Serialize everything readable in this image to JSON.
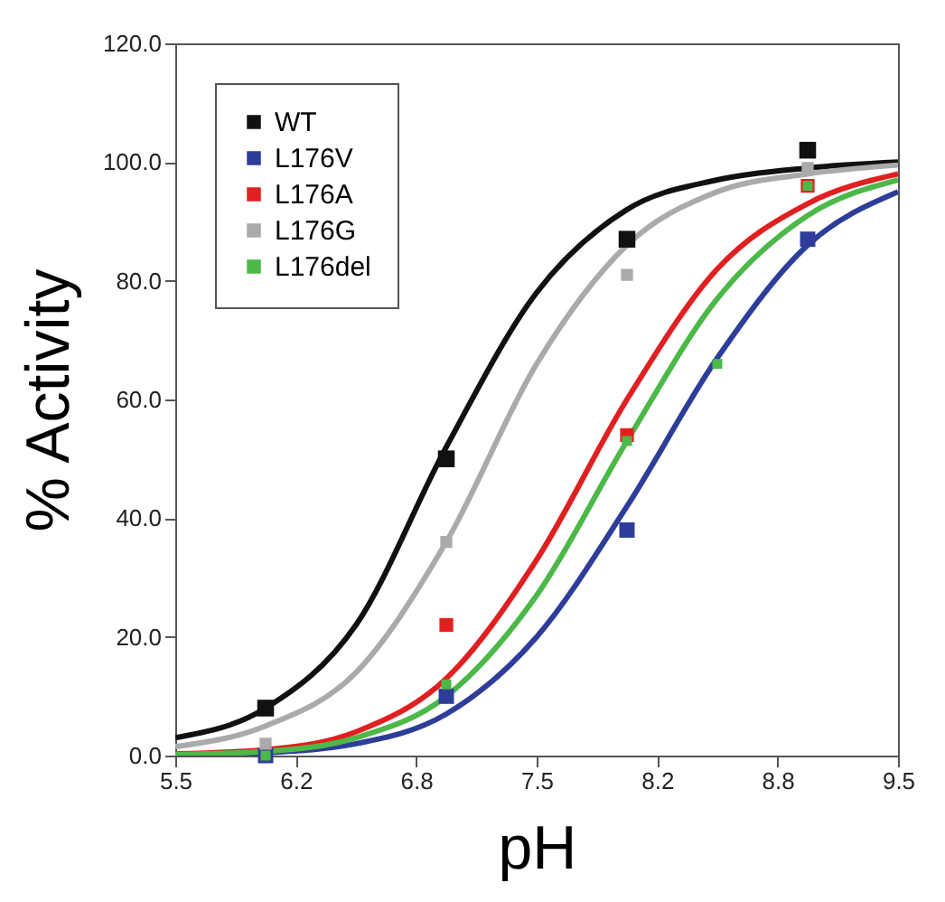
{
  "chart_data": {
    "type": "scatter",
    "xlabel": "pH",
    "ylabel": "% Activity",
    "legend": "top left",
    "xlim": [
      5.5,
      9.5
    ],
    "xticks": [
      5.5,
      {
        "value": 6.1667,
        "label": "6.2"
      },
      {
        "value": 6.8333,
        "label": "6.8"
      },
      7.5,
      {
        "value": 8.1667,
        "label": "8.2"
      },
      {
        "value": 8.8333,
        "label": "8.8"
      },
      9.5
    ],
    "ylim": [
      0,
      120
    ],
    "yticks": [
      {
        "value": 0,
        "label": "0.0"
      },
      {
        "value": 20,
        "label": "20.0"
      },
      {
        "value": 40,
        "label": "40.0"
      },
      {
        "value": 60,
        "label": "60.0"
      },
      {
        "value": 80,
        "label": "80.0"
      },
      {
        "value": 100,
        "label": "100.0"
      },
      {
        "value": 120,
        "label": "120.0"
      }
    ],
    "series": [
      {
        "name": "WT",
        "marker": "square",
        "color": "#111111",
        "x": [
          6.0,
          7.0,
          8.0,
          9.0
        ],
        "values": [
          8,
          50,
          87,
          102
        ]
      },
      {
        "name": "L176V",
        "marker": "square",
        "color": "#2e3d99",
        "x": [
          6.0,
          7.0,
          8.0,
          9.0
        ],
        "values": [
          0,
          10,
          38,
          87
        ]
      },
      {
        "name": "L176A",
        "marker": "square",
        "color": "#e02020",
        "x": [
          7.0,
          8.0,
          9.0
        ],
        "values": [
          22,
          54,
          96
        ]
      },
      {
        "name": "L176G",
        "marker": "square",
        "color": "#aaaaaa",
        "x": [
          6.0,
          7.0,
          8.0,
          9.0
        ],
        "values": [
          2,
          36,
          81,
          99
        ]
      },
      {
        "name": "L176del",
        "marker": "square",
        "color": "#4cb848",
        "x": [
          6.0,
          7.0,
          8.0,
          8.5,
          9.0
        ],
        "values": [
          0,
          12,
          53,
          66,
          96
        ]
      },
      {
        "type": "line",
        "color": "#111111",
        "x": [
          5.5,
          6.0,
          6.5,
          7.0,
          7.5,
          8.0,
          8.5,
          9.0,
          9.5
        ],
        "values": [
          3,
          8,
          22,
          52,
          78,
          92,
          97,
          99,
          100
        ]
      },
      {
        "type": "line",
        "color": "#2e3d99",
        "x": [
          5.5,
          6.0,
          6.5,
          7.0,
          7.5,
          8.0,
          8.5,
          9.0,
          9.5
        ],
        "values": [
          0.1,
          0.5,
          2,
          7,
          20,
          42,
          67,
          86,
          95
        ]
      },
      {
        "type": "line",
        "color": "#e02020",
        "x": [
          5.5,
          6.0,
          6.5,
          7.0,
          7.5,
          8.0,
          8.5,
          9.0,
          9.5
        ],
        "values": [
          0.3,
          1,
          4,
          13,
          33,
          60,
          82,
          93,
          98
        ]
      },
      {
        "type": "line",
        "color": "#aaaaaa",
        "x": [
          5.5,
          6.0,
          6.5,
          7.0,
          7.5,
          8.0,
          8.5,
          9.0,
          9.5
        ],
        "values": [
          1.5,
          5,
          14,
          36,
          66,
          86,
          95,
          98,
          99.5
        ]
      },
      {
        "type": "line",
        "color": "#4cb848",
        "x": [
          5.5,
          6.0,
          6.5,
          7.0,
          7.5,
          8.0,
          8.5,
          9.0,
          9.5
        ],
        "values": [
          0.2,
          0.7,
          3,
          10,
          27,
          53,
          77,
          91,
          97
        ]
      }
    ]
  }
}
